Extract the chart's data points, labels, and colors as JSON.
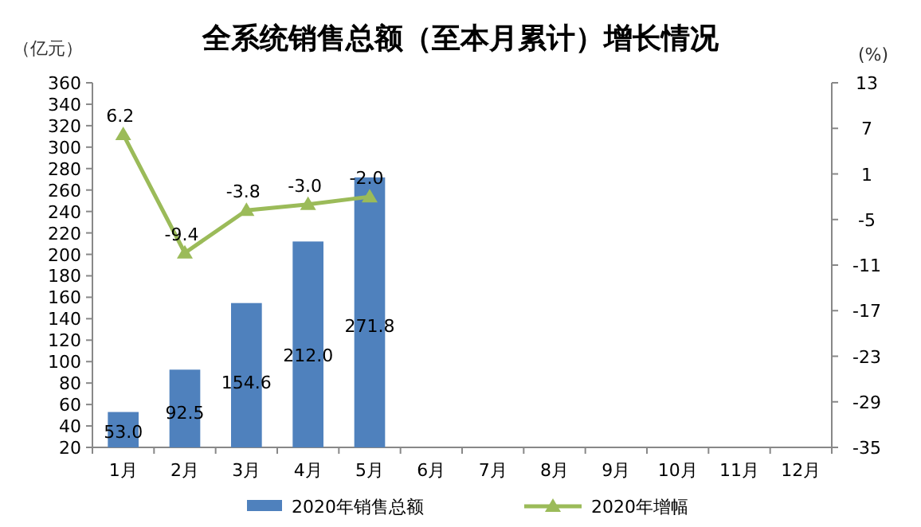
{
  "chart_data": {
    "type": "bar",
    "title": "全系统销售总额（至本月累计）增长情况",
    "ylabel": "（亿元）",
    "y2label": "(%)",
    "categories": [
      "1月",
      "2月",
      "3月",
      "4月",
      "5月",
      "6月",
      "7月",
      "8月",
      "9月",
      "10月",
      "11月",
      "12月"
    ],
    "series": [
      {
        "name": "2020年销售总额",
        "color": "#4f81bd",
        "values": [
          53.0,
          92.5,
          154.6,
          212.0,
          271.8,
          null,
          null,
          null,
          null,
          null,
          null,
          null
        ],
        "value_labels": [
          "53.0",
          "92.5",
          "154.6",
          "212.0",
          "271.8",
          null,
          null,
          null,
          null,
          null,
          null,
          null
        ]
      },
      {
        "name": "2020年增幅",
        "type": "line",
        "axis": "y2",
        "color": "#9bbb59",
        "marker": "triangle",
        "values": [
          6.2,
          -9.4,
          -3.8,
          -3.0,
          -2.0,
          null,
          null,
          null,
          null,
          null,
          null,
          null
        ],
        "value_labels": [
          "6.2",
          "-9.4",
          "-3.8",
          "-3.0",
          "-2.0",
          null,
          null,
          null,
          null,
          null,
          null,
          null
        ]
      }
    ],
    "ylim": [
      20,
      360
    ],
    "yticks": [
      20,
      40,
      60,
      80,
      100,
      120,
      140,
      160,
      180,
      200,
      220,
      240,
      260,
      280,
      300,
      320,
      340,
      360
    ],
    "y2lim": [
      -35,
      13
    ],
    "y2ticks": [
      -35,
      -29,
      -23,
      -17,
      -11,
      -5,
      1,
      7,
      13
    ],
    "legend": "bottom"
  }
}
